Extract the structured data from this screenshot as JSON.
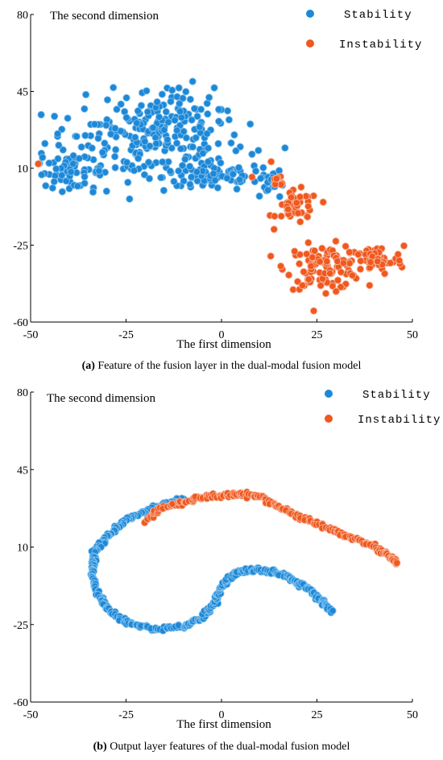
{
  "colors": {
    "stability": "#1e88d6",
    "instability": "#f0581e",
    "axis": "#000000"
  },
  "chart_data": [
    {
      "type": "scatter",
      "title": "",
      "xlabel": "The first dimension",
      "ylabel": "The second dimension",
      "xlim": [
        -50,
        50
      ],
      "ylim": [
        -60,
        80
      ],
      "xticks": [
        "-50",
        "-25",
        "0",
        "25",
        "50"
      ],
      "yticks": [
        "80",
        "45",
        "10",
        "-25",
        "-60"
      ],
      "legend": {
        "position": "top-right",
        "entries": [
          "Stability",
          "Instability"
        ]
      },
      "caption_prefix": "(a)",
      "caption_text": " Feature of the fusion layer in the dual-modal fusion model",
      "series": [
        {
          "name": "Stability",
          "clusters": [
            {
              "cx": -20,
              "cy": 22,
              "rx": 24,
              "ry": 18,
              "n": 230
            },
            {
              "cx": -12,
              "cy": 38,
              "rx": 9,
              "ry": 9,
              "n": 45
            },
            {
              "cx": -40,
              "cy": 8,
              "rx": 8,
              "ry": 6,
              "n": 45
            },
            {
              "cx": -2,
              "cy": 6,
              "rx": 12,
              "ry": 6,
              "n": 70
            },
            {
              "cx": 12,
              "cy": 3,
              "rx": 4,
              "ry": 7,
              "n": 25
            }
          ]
        },
        {
          "name": "Instability",
          "clusters": [
            {
              "cx": 20,
              "cy": -8,
              "rx": 5,
              "ry": 7,
              "n": 45
            },
            {
              "cx": 27,
              "cy": -35,
              "rx": 9,
              "ry": 9,
              "n": 110
            },
            {
              "cx": 40,
              "cy": -32,
              "rx": 7,
              "ry": 6,
              "n": 55
            },
            {
              "cx": 15,
              "cy": 4,
              "rx": 2,
              "ry": 3,
              "n": 8
            }
          ],
          "points": [
            [
              -48,
              12
            ],
            [
              8,
              6
            ],
            [
              13,
              13
            ]
          ]
        }
      ]
    },
    {
      "type": "scatter",
      "title": "",
      "xlabel": "The first dimension",
      "ylabel": "The second dimension",
      "xlim": [
        -50,
        50
      ],
      "ylim": [
        -60,
        80
      ],
      "xticks": [
        "-50",
        "-25",
        "0",
        "25",
        "50"
      ],
      "yticks": [
        "80",
        "45",
        "10",
        "-25",
        "-60"
      ],
      "legend": {
        "position": "top-right",
        "entries": [
          "Stability",
          "Instability"
        ]
      },
      "caption_prefix": "(b)",
      "caption_text": " Output layer features of the dual-modal fusion model",
      "series": [
        {
          "name": "Stability",
          "curve": [
            [
              -10,
              32
            ],
            [
              -18,
              28
            ],
            [
              -25,
              22
            ],
            [
              -30,
              15
            ],
            [
              -33,
              8
            ],
            [
              -34,
              0
            ],
            [
              -33,
              -10
            ],
            [
              -30,
              -18
            ],
            [
              -25,
              -24
            ],
            [
              -18,
              -27
            ],
            [
              -10,
              -26
            ],
            [
              -5,
              -22
            ],
            [
              -2,
              -16
            ],
            [
              0,
              -8
            ],
            [
              3,
              -2
            ],
            [
              8,
              0
            ],
            [
              13,
              -1
            ],
            [
              18,
              -4
            ],
            [
              22,
              -8
            ],
            [
              26,
              -14
            ],
            [
              29,
              -19
            ]
          ],
          "n": 420
        },
        {
          "name": "Instability",
          "curve": [
            [
              -20,
              22
            ],
            [
              -15,
              28
            ],
            [
              -10,
              30
            ],
            [
              -5,
              33
            ],
            [
              0,
              33
            ],
            [
              5,
              34
            ],
            [
              10,
              33
            ],
            [
              15,
              28
            ],
            [
              20,
              24
            ],
            [
              26,
              20
            ],
            [
              31,
              16
            ],
            [
              36,
              13
            ],
            [
              40,
              10
            ],
            [
              44,
              6
            ],
            [
              46,
              3
            ]
          ],
          "n": 200
        }
      ]
    }
  ]
}
